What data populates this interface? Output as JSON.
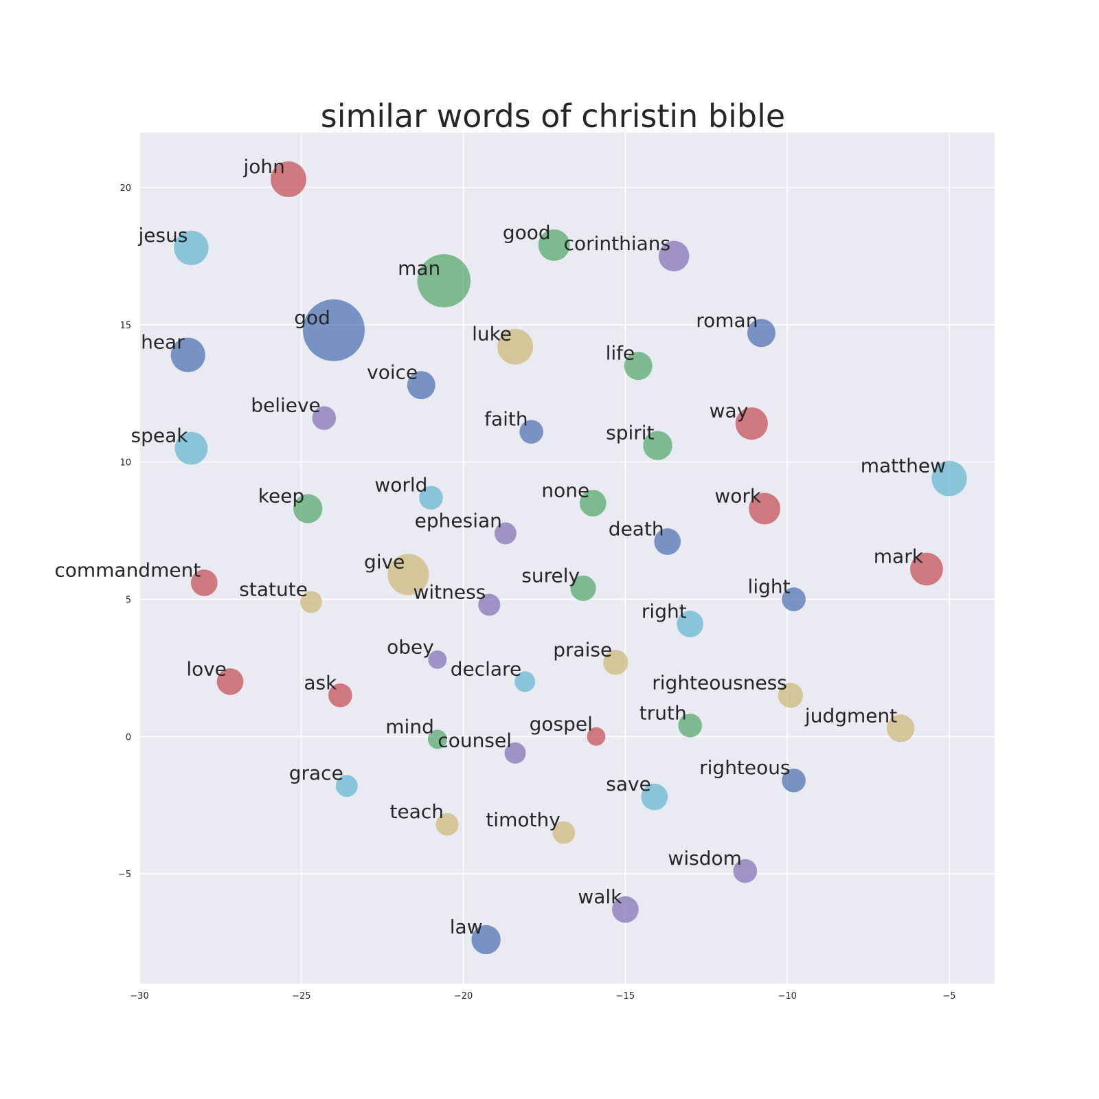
{
  "chart_data": {
    "type": "scatter",
    "title": "similar words of christin bible",
    "xlabel": "",
    "ylabel": "",
    "xlim": [
      -30,
      -3.6
    ],
    "ylim": [
      -9,
      22
    ],
    "xticks": [
      -30,
      -25,
      -20,
      -15,
      -10,
      -5
    ],
    "yticks": [
      -5,
      0,
      5,
      10,
      15,
      20
    ],
    "grid": true,
    "palette": {
      "blue": "#4c72b0",
      "green": "#55a868",
      "red": "#c44e52",
      "purple": "#8172b2",
      "yellow": "#ccb974",
      "cyan": "#64b5cd"
    },
    "points": [
      {
        "label": "john",
        "x": -25.4,
        "y": 20.3,
        "size": 0.45,
        "color": "red"
      },
      {
        "label": "jesus",
        "x": -28.4,
        "y": 17.8,
        "size": 0.42,
        "color": "cyan"
      },
      {
        "label": "good",
        "x": -17.2,
        "y": 17.9,
        "size": 0.35,
        "color": "green"
      },
      {
        "label": "corinthians",
        "x": -13.5,
        "y": 17.5,
        "size": 0.33,
        "color": "purple"
      },
      {
        "label": "man",
        "x": -20.6,
        "y": 16.6,
        "size": 1.0,
        "color": "green"
      },
      {
        "label": "god",
        "x": -24.0,
        "y": 14.8,
        "size": 1.35,
        "color": "blue"
      },
      {
        "label": "roman",
        "x": -10.8,
        "y": 14.7,
        "size": 0.28,
        "color": "blue"
      },
      {
        "label": "hear",
        "x": -28.5,
        "y": 13.9,
        "size": 0.42,
        "color": "blue"
      },
      {
        "label": "luke",
        "x": -18.4,
        "y": 14.2,
        "size": 0.45,
        "color": "yellow"
      },
      {
        "label": "life",
        "x": -14.6,
        "y": 13.5,
        "size": 0.28,
        "color": "green"
      },
      {
        "label": "voice",
        "x": -21.3,
        "y": 12.8,
        "size": 0.28,
        "color": "blue"
      },
      {
        "label": "believe",
        "x": -24.3,
        "y": 11.6,
        "size": 0.2,
        "color": "purple"
      },
      {
        "label": "faith",
        "x": -17.9,
        "y": 11.1,
        "size": 0.2,
        "color": "blue"
      },
      {
        "label": "way",
        "x": -11.1,
        "y": 11.4,
        "size": 0.37,
        "color": "red"
      },
      {
        "label": "spirit",
        "x": -14.0,
        "y": 10.6,
        "size": 0.3,
        "color": "green"
      },
      {
        "label": "speak",
        "x": -28.4,
        "y": 10.5,
        "size": 0.38,
        "color": "cyan"
      },
      {
        "label": "matthew",
        "x": -5.0,
        "y": 9.4,
        "size": 0.44,
        "color": "cyan"
      },
      {
        "label": "world",
        "x": -21.0,
        "y": 8.7,
        "size": 0.2,
        "color": "cyan"
      },
      {
        "label": "none",
        "x": -16.0,
        "y": 8.5,
        "size": 0.25,
        "color": "green"
      },
      {
        "label": "keep",
        "x": -24.8,
        "y": 8.3,
        "size": 0.3,
        "color": "green"
      },
      {
        "label": "work",
        "x": -10.7,
        "y": 8.3,
        "size": 0.35,
        "color": "red"
      },
      {
        "label": "ephesian",
        "x": -18.7,
        "y": 7.4,
        "size": 0.17,
        "color": "purple"
      },
      {
        "label": "death",
        "x": -13.7,
        "y": 7.1,
        "size": 0.25,
        "color": "blue"
      },
      {
        "label": "mark",
        "x": -5.7,
        "y": 6.1,
        "size": 0.38,
        "color": "red"
      },
      {
        "label": "give",
        "x": -21.7,
        "y": 5.9,
        "size": 0.6,
        "color": "yellow"
      },
      {
        "label": "commandment",
        "x": -28.0,
        "y": 5.6,
        "size": 0.25,
        "color": "red"
      },
      {
        "label": "surely",
        "x": -16.3,
        "y": 5.4,
        "size": 0.23,
        "color": "green"
      },
      {
        "label": "statute",
        "x": -24.7,
        "y": 4.9,
        "size": 0.17,
        "color": "yellow"
      },
      {
        "label": "witness",
        "x": -19.2,
        "y": 4.8,
        "size": 0.17,
        "color": "purple"
      },
      {
        "label": "light",
        "x": -9.8,
        "y": 5.0,
        "size": 0.2,
        "color": "blue"
      },
      {
        "label": "right",
        "x": -13.0,
        "y": 4.1,
        "size": 0.25,
        "color": "cyan"
      },
      {
        "label": "obey",
        "x": -20.8,
        "y": 2.8,
        "size": 0.12,
        "color": "purple"
      },
      {
        "label": "praise",
        "x": -15.3,
        "y": 2.7,
        "size": 0.22,
        "color": "yellow"
      },
      {
        "label": "declare",
        "x": -18.1,
        "y": 2.0,
        "size": 0.15,
        "color": "cyan"
      },
      {
        "label": "love",
        "x": -27.2,
        "y": 2.0,
        "size": 0.25,
        "color": "red"
      },
      {
        "label": "ask",
        "x": -23.8,
        "y": 1.5,
        "size": 0.2,
        "color": "red"
      },
      {
        "label": "righteousness",
        "x": -9.9,
        "y": 1.5,
        "size": 0.22,
        "color": "yellow"
      },
      {
        "label": "truth",
        "x": -13.0,
        "y": 0.4,
        "size": 0.2,
        "color": "green"
      },
      {
        "label": "judgment",
        "x": -6.5,
        "y": 0.3,
        "size": 0.27,
        "color": "yellow"
      },
      {
        "label": "gospel",
        "x": -15.9,
        "y": 0.0,
        "size": 0.12,
        "color": "red"
      },
      {
        "label": "mind",
        "x": -20.8,
        "y": -0.1,
        "size": 0.13,
        "color": "green"
      },
      {
        "label": "counsel",
        "x": -18.4,
        "y": -0.6,
        "size": 0.16,
        "color": "purple"
      },
      {
        "label": "grace",
        "x": -23.6,
        "y": -1.8,
        "size": 0.17,
        "color": "cyan"
      },
      {
        "label": "righteous",
        "x": -9.8,
        "y": -1.6,
        "size": 0.2,
        "color": "blue"
      },
      {
        "label": "save",
        "x": -14.1,
        "y": -2.2,
        "size": 0.25,
        "color": "cyan"
      },
      {
        "label": "teach",
        "x": -20.5,
        "y": -3.2,
        "size": 0.18,
        "color": "yellow"
      },
      {
        "label": "timothy",
        "x": -16.9,
        "y": -3.5,
        "size": 0.18,
        "color": "yellow"
      },
      {
        "label": "wisdom",
        "x": -11.3,
        "y": -4.9,
        "size": 0.2,
        "color": "purple"
      },
      {
        "label": "walk",
        "x": -15.0,
        "y": -6.3,
        "size": 0.25,
        "color": "purple"
      },
      {
        "label": "law",
        "x": -19.3,
        "y": -7.4,
        "size": 0.3,
        "color": "blue"
      }
    ]
  }
}
